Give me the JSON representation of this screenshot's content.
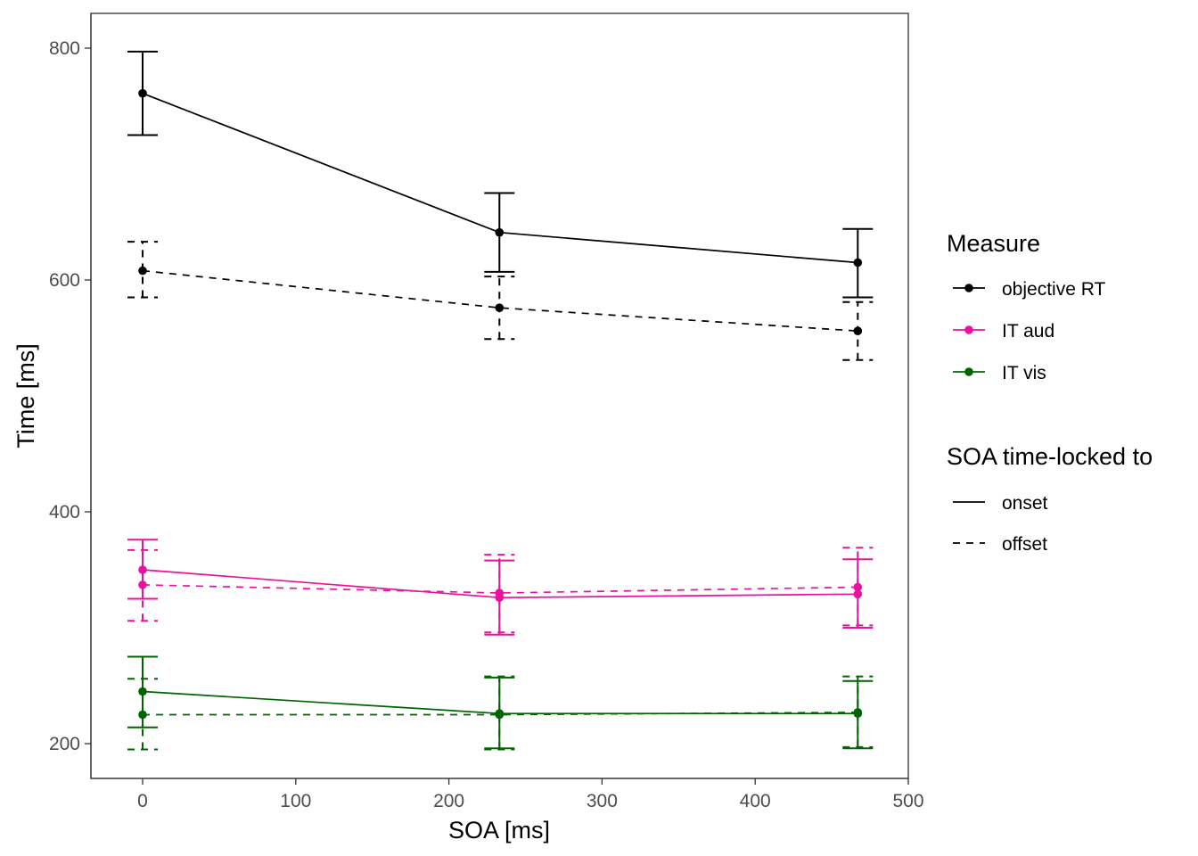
{
  "chart_data": {
    "type": "line",
    "xlabel": "SOA [ms]",
    "ylabel": "Time [ms]",
    "xlim": [
      -33,
      500
    ],
    "ylim": [
      170,
      830
    ],
    "xticks": [
      0,
      100,
      200,
      300,
      400,
      500
    ],
    "yticks": [
      200,
      400,
      600,
      800
    ],
    "grid": false,
    "legend_placement": "right",
    "legend": {
      "measure_title": "Measure",
      "measure_entries": [
        {
          "key": "objective_rt",
          "label": "objective RT",
          "color": "#000000"
        },
        {
          "key": "it_aud",
          "label": "IT aud",
          "color": "#e7139e"
        },
        {
          "key": "it_vis",
          "label": "IT vis",
          "color": "#006400"
        }
      ],
      "lock_title": "SOA time-locked to",
      "lock_entries": [
        {
          "key": "onset",
          "label": "onset",
          "dash": "solid"
        },
        {
          "key": "offset",
          "label": "offset",
          "dash": "dashed"
        }
      ]
    },
    "series": [
      {
        "measure": "objective_rt",
        "lock": "onset",
        "x": [
          0,
          233,
          467
        ],
        "y": [
          761,
          641,
          615
        ],
        "ymin": [
          725,
          607,
          585
        ],
        "ymax": [
          797,
          675,
          644
        ]
      },
      {
        "measure": "objective_rt",
        "lock": "offset",
        "x": [
          0,
          233,
          467
        ],
        "y": [
          608,
          576,
          556
        ],
        "ymin": [
          585,
          549,
          531
        ],
        "ymax": [
          633,
          603,
          581
        ]
      },
      {
        "measure": "it_aud",
        "lock": "onset",
        "x": [
          0,
          233,
          467
        ],
        "y": [
          350,
          326,
          329
        ],
        "ymin": [
          325,
          294,
          300
        ],
        "ymax": [
          376,
          358,
          359
        ]
      },
      {
        "measure": "it_aud",
        "lock": "offset",
        "x": [
          0,
          233,
          467
        ],
        "y": [
          337,
          330,
          335
        ],
        "ymin": [
          306,
          296,
          302
        ],
        "ymax": [
          367,
          363,
          369
        ]
      },
      {
        "measure": "it_vis",
        "lock": "onset",
        "x": [
          0,
          233,
          467
        ],
        "y": [
          245,
          226,
          226
        ],
        "ymin": [
          214,
          196,
          196
        ],
        "ymax": [
          275,
          257,
          254
        ]
      },
      {
        "measure": "it_vis",
        "lock": "offset",
        "x": [
          0,
          233,
          467
        ],
        "y": [
          225,
          225,
          227
        ],
        "ymin": [
          195,
          195,
          197
        ],
        "ymax": [
          256,
          258,
          258
        ]
      }
    ]
  }
}
